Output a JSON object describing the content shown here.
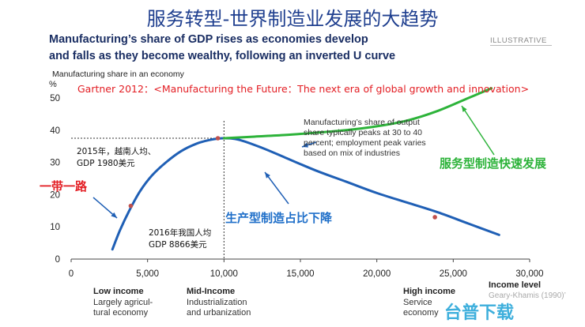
{
  "slide_title": "服务转型-世界制造业发展的大趋势",
  "chart_title_line1": "Manufacturing’s share of GDP rises as economies develop",
  "chart_title_line2": "and falls as they become wealthy, following an inverted U curve",
  "badge": "ILLUSTRATIVE",
  "ylabel": "Manufacturing share in an economy",
  "ylabel_unit": "%",
  "xunit_label": "Income level",
  "xunit_sub": "Geary-Khamis (1990)’",
  "watermark": "台普下载",
  "bands": [
    {
      "title": "Low income",
      "sub1": "Largely agricul-",
      "sub2": "tural economy"
    },
    {
      "title": "Mid-Income",
      "sub1": "Industrialization",
      "sub2": "and urbanization"
    },
    {
      "title": "High income",
      "sub1": "Service",
      "sub2": "economy"
    }
  ],
  "annotations": {
    "gartner": "Gartner 2012：<Manufacturing the Future：The next era of global growth and innovation>",
    "peak_note_1": "Manufacturing’s share of output",
    "peak_note_2": "share typically peaks at 30 to 40",
    "peak_note_3": "percent; employment peak varies",
    "peak_note_4": "based on mix of industries",
    "service_mfg": "服务型制造快速发展",
    "production_mfg": "生产型制造占比下降",
    "belt_road": "一带一路",
    "vietnam_1": "2015年，越南人均、",
    "vietnam_2": "GDP 1980美元",
    "china_1": "2016年我国人均",
    "china_2": "GDP 8866美元"
  },
  "colors": {
    "blue_curve": "#1f5fb5",
    "green_curve": "#2db33a",
    "red_text": "#e31e24",
    "title_blue": "#1f3f8f",
    "production_blue": "#1f6fc9"
  },
  "chart_data": {
    "type": "line",
    "xlim": [
      0,
      30000
    ],
    "ylim": [
      0,
      50
    ],
    "x_ticks": [
      0,
      5000,
      10000,
      15000,
      20000,
      25000,
      30000
    ],
    "x_tick_labels": [
      "0",
      "5,000",
      "10,000",
      "15,000",
      "20,000",
      "25,000",
      "30,000"
    ],
    "y_ticks": [
      0,
      10,
      20,
      30,
      40,
      50
    ],
    "y_tick_labels": [
      "0",
      "10",
      "20",
      "30",
      "40",
      "50"
    ],
    "series": [
      {
        "color": "#1f5fb5",
        "x": [
          2700,
          3200,
          3800,
          4500,
          5300,
          6200,
          7200,
          8200,
          9100,
          10000,
          11000,
          12500,
          14000,
          16000,
          18000,
          20000,
          22000,
          24000,
          26000,
          28000
        ],
        "y": [
          3,
          9,
          15,
          21,
          26,
          30,
          33.5,
          35.8,
          37,
          37.5,
          37,
          34.5,
          31.5,
          27.5,
          24,
          20.5,
          17.5,
          14.5,
          11,
          7.5
        ]
      },
      {
        "color": "#2db33a",
        "x": [
          10000,
          12000,
          14000,
          16000,
          18000,
          20000,
          22000,
          24000,
          26000,
          27500
        ],
        "y": [
          37.5,
          38,
          38.5,
          39.2,
          40,
          41.2,
          43,
          46,
          50,
          53
        ]
      }
    ],
    "markers": [
      {
        "x": 3900,
        "y": 16.5
      },
      {
        "x": 9600,
        "y": 37.5
      },
      {
        "x": 23800,
        "y": 13
      }
    ],
    "reference": {
      "x": 10000,
      "y": 37.5
    }
  }
}
